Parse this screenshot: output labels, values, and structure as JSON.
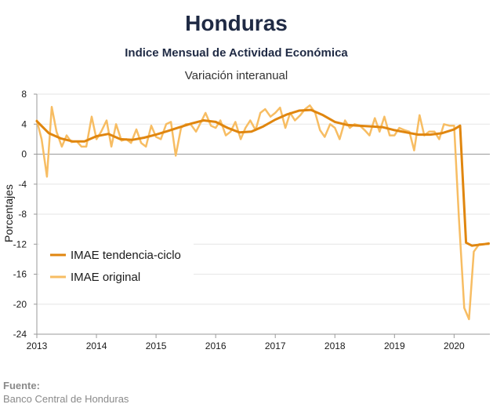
{
  "title": "Honduras",
  "subtitle": "Indice Mensual de  Actividad Económica",
  "subtitle2": "Variación interanual",
  "source": {
    "label": "Fuente:",
    "value": "Banco Central de Honduras"
  },
  "colors": {
    "trend": "#e0860f",
    "original": "#f7bd63",
    "axis": "#9a9a9a",
    "grid": "#e6e6e6"
  },
  "chart_data": {
    "type": "line",
    "ylabel": "Porcentajes",
    "ylim": [
      -24,
      8
    ],
    "yticks": [
      8,
      4,
      0,
      -4,
      -8,
      -12,
      -16,
      -20,
      -24
    ],
    "xlim": [
      2013,
      2020.6
    ],
    "xticks": [
      2013,
      2014,
      2015,
      2016,
      2017,
      2018,
      2019,
      2020
    ],
    "legend_position": "lower-left",
    "series": [
      {
        "name": "IMAE tendencia-ciclo",
        "x": [
          2013.0,
          2013.2,
          2013.4,
          2013.6,
          2013.8,
          2014.0,
          2014.2,
          2014.4,
          2014.6,
          2014.8,
          2015.0,
          2015.2,
          2015.4,
          2015.6,
          2015.8,
          2016.0,
          2016.2,
          2016.4,
          2016.6,
          2016.8,
          2017.0,
          2017.2,
          2017.4,
          2017.6,
          2017.8,
          2018.0,
          2018.2,
          2018.4,
          2018.6,
          2018.8,
          2019.0,
          2019.2,
          2019.4,
          2019.6,
          2019.8,
          2020.0,
          2020.1,
          2020.2,
          2020.3,
          2020.4,
          2020.5,
          2020.58
        ],
        "y": [
          4.4,
          2.8,
          2.1,
          1.7,
          1.7,
          2.4,
          2.7,
          2.0,
          1.9,
          2.2,
          2.6,
          3.1,
          3.6,
          4.1,
          4.5,
          4.3,
          3.5,
          2.9,
          3.0,
          3.7,
          4.6,
          5.3,
          5.8,
          5.9,
          5.2,
          4.3,
          3.9,
          3.8,
          3.7,
          3.6,
          3.2,
          2.9,
          2.6,
          2.6,
          2.8,
          3.3,
          3.8,
          -11.8,
          -12.2,
          -12.1,
          -12.0,
          -11.9
        ]
      },
      {
        "name": "IMAE original",
        "x": [
          2013.0,
          2013.08,
          2013.17,
          2013.25,
          2013.33,
          2013.42,
          2013.5,
          2013.58,
          2013.67,
          2013.75,
          2013.83,
          2013.92,
          2014.0,
          2014.08,
          2014.17,
          2014.25,
          2014.33,
          2014.42,
          2014.5,
          2014.58,
          2014.67,
          2014.75,
          2014.83,
          2014.92,
          2015.0,
          2015.08,
          2015.17,
          2015.25,
          2015.33,
          2015.42,
          2015.5,
          2015.58,
          2015.67,
          2015.75,
          2015.83,
          2015.92,
          2016.0,
          2016.08,
          2016.17,
          2016.25,
          2016.33,
          2016.42,
          2016.5,
          2016.58,
          2016.67,
          2016.75,
          2016.83,
          2016.92,
          2017.0,
          2017.08,
          2017.17,
          2017.25,
          2017.33,
          2017.42,
          2017.5,
          2017.58,
          2017.67,
          2017.75,
          2017.83,
          2017.92,
          2018.0,
          2018.08,
          2018.17,
          2018.25,
          2018.33,
          2018.42,
          2018.5,
          2018.58,
          2018.67,
          2018.75,
          2018.83,
          2018.92,
          2019.0,
          2019.08,
          2019.17,
          2019.25,
          2019.33,
          2019.42,
          2019.5,
          2019.58,
          2019.67,
          2019.75,
          2019.83,
          2019.92,
          2020.0,
          2020.08,
          2020.17,
          2020.25,
          2020.33,
          2020.42,
          2020.5,
          2020.58
        ],
        "y": [
          4.5,
          2.0,
          -3.0,
          6.3,
          3.0,
          1.0,
          2.5,
          1.6,
          1.7,
          1.0,
          1.0,
          5.0,
          2.0,
          3.0,
          4.5,
          1.0,
          4.0,
          1.8,
          2.0,
          1.5,
          3.3,
          1.5,
          1.0,
          3.8,
          2.3,
          2.0,
          4.0,
          4.3,
          -0.2,
          3.5,
          4.0,
          4.0,
          3.0,
          4.2,
          5.5,
          3.8,
          3.5,
          4.5,
          2.5,
          3.0,
          4.3,
          2.0,
          3.5,
          4.5,
          3.2,
          5.5,
          6.0,
          5.0,
          5.5,
          6.2,
          3.5,
          5.5,
          4.5,
          5.2,
          6.0,
          6.5,
          5.5,
          3.2,
          2.3,
          4.0,
          3.5,
          2.0,
          4.5,
          3.5,
          4.0,
          3.8,
          3.2,
          2.5,
          4.8,
          3.0,
          5.0,
          2.5,
          2.5,
          3.5,
          3.2,
          3.0,
          0.5,
          5.2,
          2.5,
          3.0,
          3.0,
          2.0,
          4.0,
          3.8,
          3.8,
          -8.5,
          -20.5,
          -22.0,
          -13.0,
          -12.0,
          -12.0,
          -12.0
        ]
      }
    ]
  }
}
